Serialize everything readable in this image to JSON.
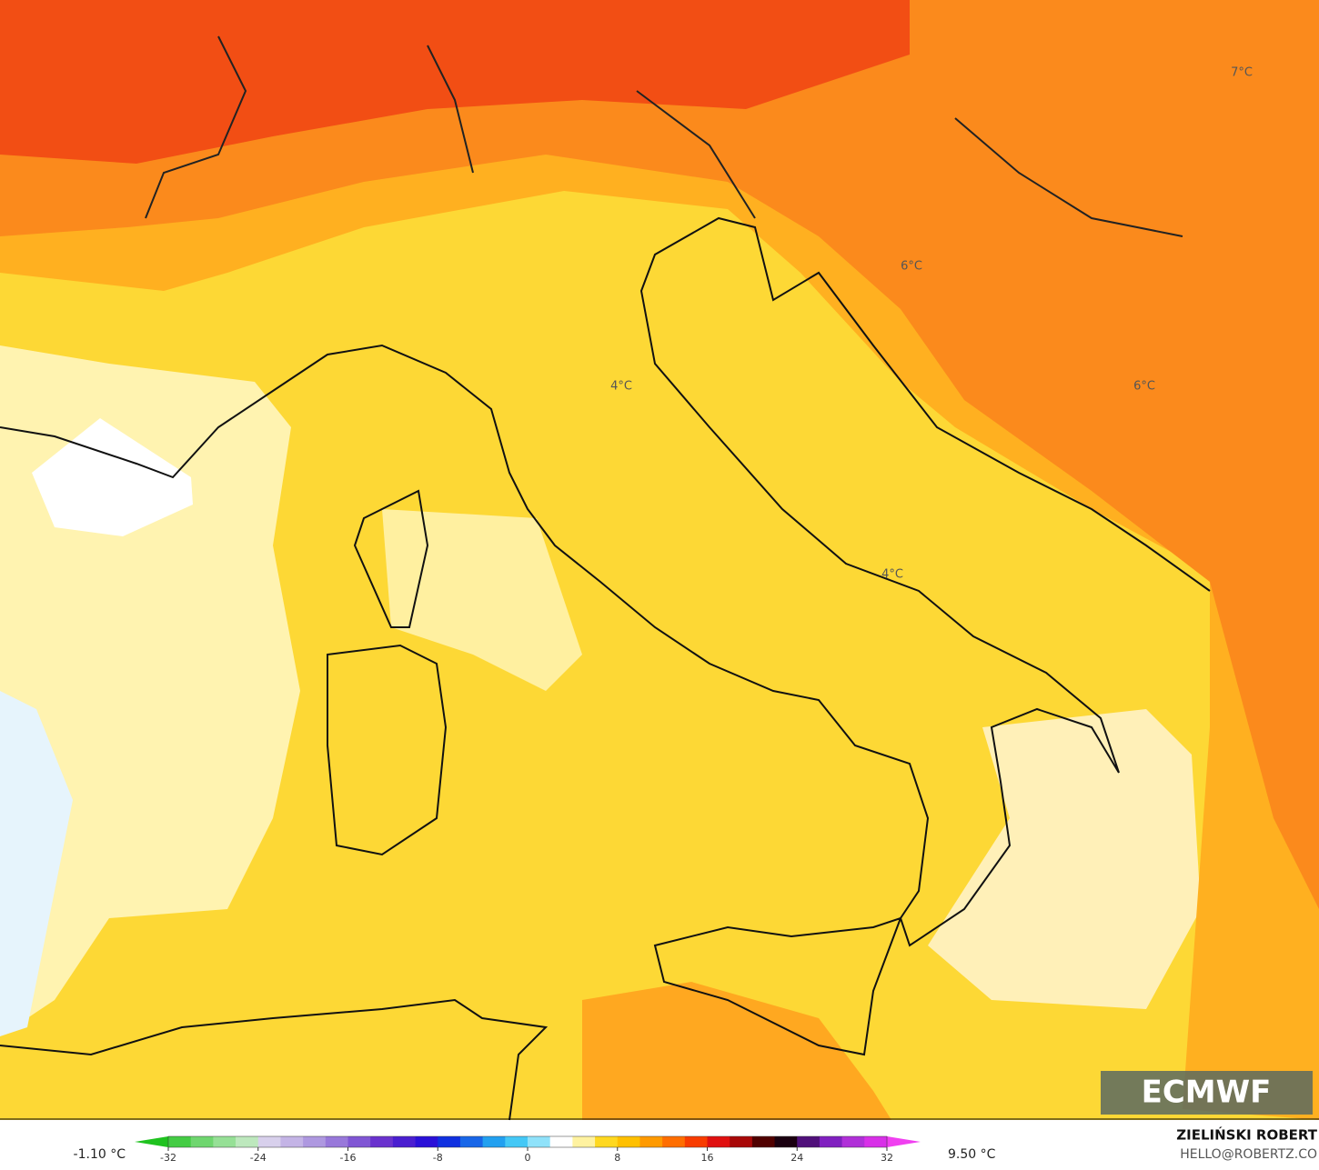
{
  "map": {
    "contour_labels": [
      "7°C",
      "6°C",
      "4°C",
      "6°C",
      "4°C"
    ],
    "logo": "ECMWF"
  },
  "colorbar": {
    "min_label": "-1.10 °C",
    "max_label": "9.50 °C",
    "lim": [
      -32,
      32
    ],
    "ticks": [
      -32,
      -24,
      -16,
      -8,
      0,
      8,
      16,
      24,
      32
    ],
    "colors": [
      "#1fc21f",
      "#44cc44",
      "#6fd66f",
      "#96e096",
      "#bde8bd",
      "#d8d0ec",
      "#c4b4e6",
      "#ae98e0",
      "#9878da",
      "#8056d4",
      "#6a32ce",
      "#4a1ed0",
      "#2a10d8",
      "#1030e0",
      "#1866e8",
      "#22a0f0",
      "#44c8f6",
      "#8fe2fa",
      "#ffffff",
      "#fff2a0",
      "#ffd820",
      "#ffc000",
      "#ff9a00",
      "#ff6e00",
      "#f83c00",
      "#e01010",
      "#a80808",
      "#500000",
      "#1a0010",
      "#50107a",
      "#8020c0",
      "#b030d8",
      "#d830e8",
      "#f040f0"
    ],
    "author": "ZIELIŃSKI ROBERT",
    "contact": "HELLO@ROBERTZ.CO"
  }
}
